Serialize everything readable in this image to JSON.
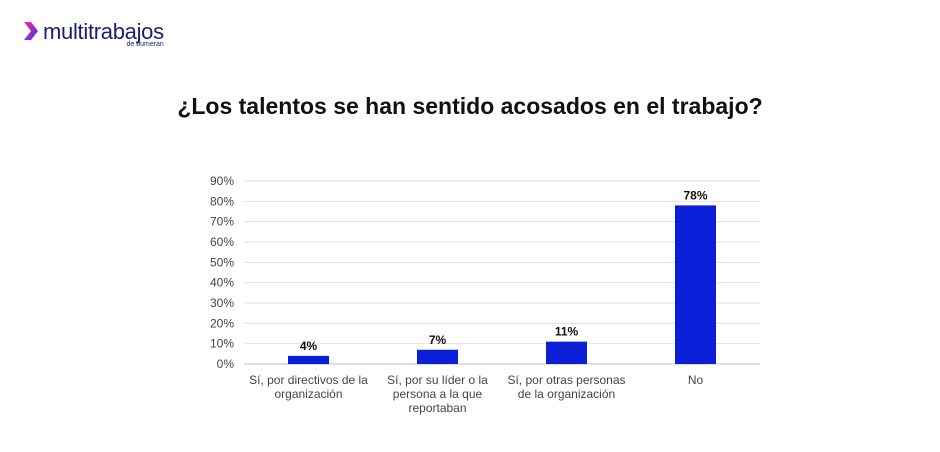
{
  "brand": {
    "name": "multitrabajos",
    "tagline": "de bumeran",
    "accent_color": "#1b22e0",
    "logo_gradient": [
      "#ff2a9a",
      "#3a2ef2"
    ]
  },
  "chart_data": {
    "type": "bar",
    "title": "¿Los talentos se han sentido acosados en el trabajo?",
    "categories": [
      [
        "Sí, por directivos de la",
        "organización"
      ],
      [
        "Sí, por su líder o la",
        "persona a la que",
        "reportaban"
      ],
      [
        "Sí, por otras personas",
        "de la organización"
      ],
      [
        "No"
      ]
    ],
    "values": [
      4,
      7,
      11,
      78
    ],
    "data_labels": [
      "4%",
      "7%",
      "11%",
      "78%"
    ],
    "ylim": [
      0,
      90
    ],
    "yticks": [
      "0%",
      "10%",
      "20%",
      "30%",
      "40%",
      "50%",
      "60%",
      "70%",
      "80%",
      "90%"
    ],
    "grid": true,
    "bar_color": "#0b1fd8",
    "xlabel": "",
    "ylabel": ""
  }
}
